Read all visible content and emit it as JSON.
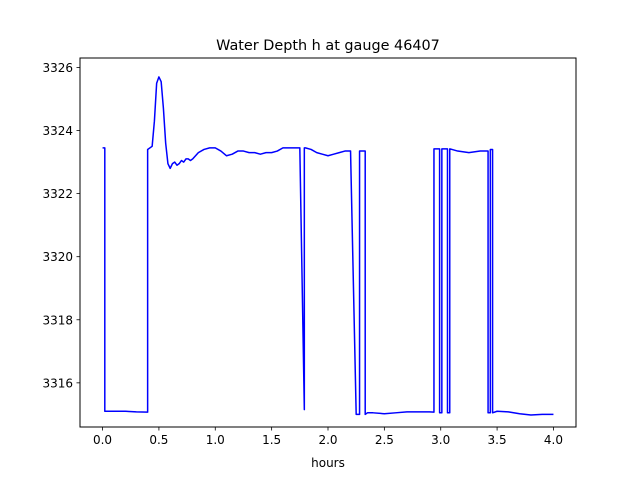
{
  "chart_data": {
    "type": "line",
    "title": "Water Depth h at gauge 46407",
    "xlabel": "hours",
    "ylabel": "",
    "xlim": [
      -0.2,
      4.2
    ],
    "ylim": [
      3314.6,
      3326.3
    ],
    "xticks": [
      0.0,
      0.5,
      1.0,
      1.5,
      2.0,
      2.5,
      3.0,
      3.5,
      4.0
    ],
    "xtick_labels": [
      "0.0",
      "0.5",
      "1.0",
      "1.5",
      "2.0",
      "2.5",
      "3.0",
      "3.5",
      "4.0"
    ],
    "yticks": [
      3316,
      3318,
      3320,
      3322,
      3324,
      3326
    ],
    "ytick_labels": [
      "3316",
      "3318",
      "3320",
      "3322",
      "3324",
      "3326"
    ],
    "grid": false,
    "series_color": "#0000ff",
    "series": [
      {
        "x": [
          0.0,
          0.02,
          0.02,
          0.1,
          0.2,
          0.3,
          0.4,
          0.4,
          0.44,
          0.46,
          0.48,
          0.5,
          0.52,
          0.54,
          0.56,
          0.58,
          0.6,
          0.62,
          0.64,
          0.66,
          0.68,
          0.7,
          0.72,
          0.74,
          0.76,
          0.78,
          0.8,
          0.85,
          0.9,
          0.95,
          1.0,
          1.05,
          1.1,
          1.15,
          1.2,
          1.25,
          1.3,
          1.35,
          1.4,
          1.45,
          1.5,
          1.55,
          1.6,
          1.65,
          1.7,
          1.75,
          1.79,
          1.79,
          1.8,
          1.8,
          1.85,
          1.9,
          1.95,
          2.0,
          2.05,
          2.1,
          2.15,
          2.2,
          2.25,
          2.25,
          2.28,
          2.28,
          2.33,
          2.33,
          2.35,
          2.4,
          2.5,
          2.6,
          2.7,
          2.8,
          2.9,
          2.94,
          2.94,
          2.99,
          2.99,
          3.01,
          3.01,
          3.06,
          3.06,
          3.08,
          3.08,
          3.15,
          3.25,
          3.35,
          3.42,
          3.42,
          3.44,
          3.44,
          3.46,
          3.46,
          3.5,
          3.6,
          3.7,
          3.8,
          3.9,
          4.0
        ],
        "y": [
          3323.45,
          3323.45,
          3315.1,
          3315.1,
          3315.1,
          3315.08,
          3315.07,
          3323.4,
          3323.5,
          3324.3,
          3325.5,
          3325.7,
          3325.55,
          3324.7,
          3323.6,
          3322.95,
          3322.8,
          3322.95,
          3323.0,
          3322.9,
          3322.95,
          3323.05,
          3323.0,
          3323.1,
          3323.1,
          3323.05,
          3323.1,
          3323.3,
          3323.4,
          3323.45,
          3323.45,
          3323.35,
          3323.2,
          3323.25,
          3323.35,
          3323.35,
          3323.3,
          3323.3,
          3323.25,
          3323.3,
          3323.3,
          3323.35,
          3323.45,
          3323.45,
          3323.45,
          3323.45,
          3315.15,
          3323.45,
          3323.45,
          3323.45,
          3323.4,
          3323.3,
          3323.25,
          3323.2,
          3323.25,
          3323.3,
          3323.35,
          3323.35,
          3315.0,
          3315.0,
          3315.0,
          3323.35,
          3323.35,
          3315.0,
          3315.05,
          3315.05,
          3315.02,
          3315.05,
          3315.08,
          3315.08,
          3315.08,
          3315.07,
          3323.42,
          3323.42,
          3315.05,
          3315.05,
          3323.42,
          3323.42,
          3315.05,
          3315.05,
          3323.42,
          3323.35,
          3323.3,
          3323.35,
          3323.35,
          3315.05,
          3315.05,
          3323.4,
          3323.4,
          3315.05,
          3315.1,
          3315.08,
          3315.02,
          3314.98,
          3315.0,
          3315.0
        ]
      }
    ]
  }
}
